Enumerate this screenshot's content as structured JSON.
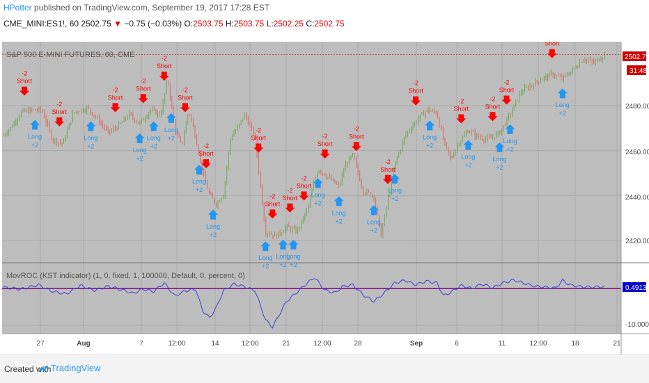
{
  "header": {
    "author": "HPotter",
    "published_text": "published on TradingView.com, September 19, 2017 17:28 EST",
    "symbol": "CME_MINI:ES1!, 60",
    "last": "2502.75",
    "change": "−0.75 (−0.03%)",
    "o_label": "O:",
    "o": "2503.75",
    "h_label": "H:",
    "h": "2503.75",
    "l_label": "L:",
    "l": "2502.25",
    "c_label": "C:",
    "c": "2502.75"
  },
  "main_pane": {
    "title": "S&P 500 E-MINI FUTURES, 60, CME",
    "price_badge": "2502.75",
    "time_badge": "31:48",
    "y_ticks": [
      "2480.00",
      "2460.00",
      "2440.00",
      "2420.00"
    ]
  },
  "indicator_pane": {
    "title": "MovROC (KST indicator) (1, 0, fixed, 1, 100000, Default, 0, percent, 0)",
    "value_badge": "0.4913",
    "y_tick": "-10.0000"
  },
  "x_axis": {
    "ticks": [
      "27",
      "Aug",
      "7",
      "12:00",
      "14",
      "12:00",
      "21",
      "12:00",
      "28",
      "Sep",
      "6",
      "11",
      "12:00",
      "18",
      "21"
    ]
  },
  "signals": {
    "short_qty": "-2",
    "short_label": "Short",
    "long_label": "Long",
    "long_qty": "+2"
  },
  "footer": {
    "created_with": "Created with",
    "brand": "TradingView"
  },
  "colors": {
    "pane_bg": "#bdbdbd",
    "bull": "#6aa84f",
    "bear": "#e06666",
    "short_arrow": "#ff0000",
    "long_arrow": "#2196f3",
    "indicator_line": "#3a3fd8",
    "zero_line": "#800080",
    "price_badge": "#cc0000",
    "indicator_badge": "#0000cc"
  },
  "chart_data": [
    {
      "type": "candlestick",
      "title": "S&P 500 E-MINI FUTURES, 60, CME",
      "ylim": [
        2413,
        2506
      ],
      "y_ticks": [
        2480,
        2460,
        2440,
        2420
      ],
      "last_price": 2502.75,
      "price_path_points": [
        [
          0,
          2467
        ],
        [
          2,
          2470
        ],
        [
          5,
          2477
        ],
        [
          8,
          2478
        ],
        [
          11,
          2478
        ],
        [
          14,
          2465
        ],
        [
          17,
          2463
        ],
        [
          20,
          2477
        ],
        [
          24,
          2479
        ],
        [
          27,
          2474
        ],
        [
          30,
          2468
        ],
        [
          33,
          2471
        ],
        [
          36,
          2476
        ],
        [
          39,
          2472
        ],
        [
          42,
          2478
        ],
        [
          45,
          2476
        ],
        [
          47,
          2492
        ],
        [
          49,
          2470
        ],
        [
          51,
          2462
        ],
        [
          53,
          2478
        ],
        [
          55,
          2466
        ],
        [
          57,
          2450
        ],
        [
          59,
          2440
        ],
        [
          61,
          2436
        ],
        [
          63,
          2441
        ],
        [
          65,
          2466
        ],
        [
          67,
          2470
        ],
        [
          69,
          2476
        ],
        [
          72,
          2466
        ],
        [
          75,
          2424
        ],
        [
          78,
          2422
        ],
        [
          81,
          2426
        ],
        [
          84,
          2424
        ],
        [
          87,
          2434
        ],
        [
          90,
          2452
        ],
        [
          93,
          2448
        ],
        [
          96,
          2444
        ],
        [
          98,
          2454
        ],
        [
          100,
          2458
        ],
        [
          103,
          2442
        ],
        [
          106,
          2440
        ],
        [
          108,
          2422
        ],
        [
          110,
          2438
        ],
        [
          112,
          2454
        ],
        [
          115,
          2467
        ],
        [
          118,
          2473
        ],
        [
          121,
          2478
        ],
        [
          124,
          2477
        ],
        [
          126,
          2464
        ],
        [
          128,
          2456
        ],
        [
          130,
          2463
        ],
        [
          133,
          2469
        ],
        [
          136,
          2466
        ],
        [
          139,
          2465
        ],
        [
          142,
          2468
        ],
        [
          145,
          2476
        ],
        [
          148,
          2486
        ],
        [
          151,
          2489
        ],
        [
          154,
          2492
        ],
        [
          157,
          2494
        ],
        [
          160,
          2492
        ],
        [
          163,
          2496
        ],
        [
          166,
          2501
        ],
        [
          169,
          2499
        ],
        [
          172,
          2502.75
        ]
      ],
      "signals": [
        {
          "type": "short",
          "x": "Jul 25"
        },
        {
          "type": "long",
          "x": "Jul 26"
        },
        {
          "type": "short",
          "x": "Jul 31"
        },
        {
          "type": "long",
          "x": "Aug 3"
        },
        {
          "type": "short",
          "x": "Aug 7"
        },
        {
          "type": "long",
          "x": "Aug 9"
        },
        {
          "type": "short",
          "x": "Aug 10"
        },
        {
          "type": "long",
          "x": "Aug 10"
        },
        {
          "type": "short",
          "x": "Aug 11"
        },
        {
          "type": "long",
          "x": "Aug 14"
        },
        {
          "type": "short",
          "x": "Aug 15"
        },
        {
          "type": "long",
          "x": "Aug 17"
        },
        {
          "type": "short",
          "x": "Aug 18"
        },
        {
          "type": "long",
          "x": "Aug 18"
        },
        {
          "type": "short",
          "x": "Aug 23"
        },
        {
          "type": "long",
          "x": "Aug 24"
        },
        {
          "type": "short",
          "x": "Aug 25"
        },
        {
          "type": "long",
          "x": "Aug 25"
        },
        {
          "type": "short",
          "x": "Aug 28"
        },
        {
          "type": "long",
          "x": "Aug 28"
        },
        {
          "type": "short",
          "x": "Aug 28"
        },
        {
          "type": "long",
          "x": "Aug 29"
        },
        {
          "type": "short",
          "x": "Aug 30"
        },
        {
          "type": "long",
          "x": "Aug 30"
        },
        {
          "type": "short",
          "x": "Aug 31"
        },
        {
          "type": "long",
          "x": "Sep 5"
        },
        {
          "type": "short",
          "x": "Sep 6"
        },
        {
          "type": "long",
          "x": "Sep 6"
        },
        {
          "type": "short",
          "x": "Sep 7"
        },
        {
          "type": "long",
          "x": "Sep 8"
        },
        {
          "type": "short",
          "x": "Sep 11"
        },
        {
          "type": "long",
          "x": "Sep 12"
        },
        {
          "type": "short",
          "x": "Sep 13"
        },
        {
          "type": "long",
          "x": "Sep 14"
        },
        {
          "type": "short",
          "x": "Sep 14"
        },
        {
          "type": "long",
          "x": "Sep 15"
        },
        {
          "type": "short",
          "x": "Sep 18"
        },
        {
          "type": "long",
          "x": "Sep 19"
        }
      ]
    },
    {
      "type": "line",
      "title": "MovROC (KST indicator) (1, 0, fixed, 1, 100000, Default, 0, percent, 0)",
      "ylim": [
        -11,
        4
      ],
      "y_ticks": [
        -10
      ],
      "last_value": 0.4913,
      "indicator_path_points": [
        [
          0,
          0.3
        ],
        [
          5,
          -0.2
        ],
        [
          10,
          1.0
        ],
        [
          14,
          -0.8
        ],
        [
          18,
          -1.5
        ],
        [
          22,
          0.8
        ],
        [
          26,
          -0.5
        ],
        [
          30,
          0.6
        ],
        [
          34,
          -0.4
        ],
        [
          37,
          -1.3
        ],
        [
          40,
          -0.2
        ],
        [
          43,
          -0.8
        ],
        [
          46,
          1.5
        ],
        [
          49,
          -2.0
        ],
        [
          52,
          -0.7
        ],
        [
          55,
          -0.2
        ],
        [
          57,
          -6.0
        ],
        [
          59,
          -8.0
        ],
        [
          61,
          -5.0
        ],
        [
          63,
          -0.5
        ],
        [
          66,
          1.2
        ],
        [
          69,
          0.5
        ],
        [
          72,
          -0.6
        ],
        [
          75,
          -8.5
        ],
        [
          77,
          -10.5
        ],
        [
          79,
          -7.0
        ],
        [
          81,
          -3.5
        ],
        [
          84,
          -1.0
        ],
        [
          87,
          1.5
        ],
        [
          89,
          3.0
        ],
        [
          92,
          -0.5
        ],
        [
          95,
          -1.2
        ],
        [
          97,
          0.5
        ],
        [
          100,
          1.0
        ],
        [
          103,
          -1.8
        ],
        [
          106,
          -3.5
        ],
        [
          109,
          -1.2
        ],
        [
          112,
          1.5
        ],
        [
          115,
          2.2
        ],
        [
          118,
          1.0
        ],
        [
          121,
          2.0
        ],
        [
          124,
          1.5
        ],
        [
          126,
          -2.0
        ],
        [
          128,
          -1.0
        ],
        [
          131,
          0.8
        ],
        [
          134,
          0.0
        ],
        [
          137,
          1.2
        ],
        [
          140,
          0.2
        ],
        [
          143,
          1.5
        ],
        [
          146,
          2.3
        ],
        [
          149,
          1.4
        ],
        [
          152,
          0.6
        ],
        [
          155,
          0.4
        ],
        [
          158,
          0.1
        ],
        [
          160,
          2.2
        ],
        [
          162,
          1.0
        ],
        [
          165,
          0.5
        ],
        [
          168,
          0.4
        ],
        [
          172,
          0.4913
        ]
      ]
    }
  ]
}
